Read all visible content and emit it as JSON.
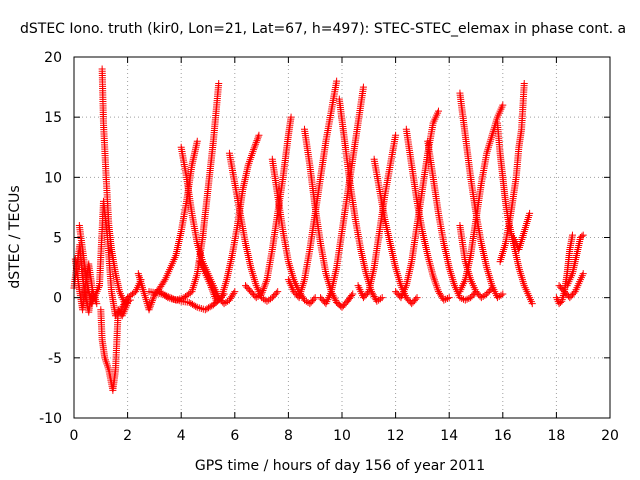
{
  "chart_data": {
    "type": "scatter",
    "title": "dSTEC Iono. truth (kir0, Lon=21, Lat=67, h=497): STEC-STEC_elemax in phase cont. a",
    "xlabel": "GPS time / hours of day 156 of year 2011",
    "ylabel": "dSTEC  / TECUs",
    "xlim": [
      0,
      20
    ],
    "ylim": [
      -10,
      20
    ],
    "xticks": [
      "0",
      "2",
      "4",
      "6",
      "8",
      "10",
      "12",
      "14",
      "16",
      "18",
      "20"
    ],
    "yticks": [
      "-10",
      "-5",
      "0",
      "5",
      "10",
      "15",
      "20"
    ],
    "grid": true,
    "marker": "+",
    "color": "#ff0000",
    "arcs": [
      [
        [
          0.0,
          0.8
        ],
        [
          0.1,
          2.6
        ],
        [
          0.22,
          4.4
        ],
        [
          0.3,
          2.0
        ],
        [
          0.4,
          0.5
        ],
        [
          0.55,
          -1.2
        ],
        [
          0.65,
          0.3
        ]
      ],
      [
        [
          0.05,
          3.2
        ],
        [
          0.18,
          1.0
        ],
        [
          0.32,
          -1.0
        ],
        [
          0.45,
          1.5
        ],
        [
          0.55,
          2.8
        ],
        [
          0.7,
          0.5
        ],
        [
          0.85,
          -0.5
        ]
      ],
      [
        [
          0.2,
          6.0
        ],
        [
          0.35,
          3.5
        ],
        [
          0.5,
          1.0
        ],
        [
          0.65,
          -0.5
        ],
        [
          0.8,
          0.2
        ],
        [
          0.95,
          1.0
        ]
      ],
      [
        [
          1.0,
          -1.0
        ],
        [
          1.05,
          -3.5
        ],
        [
          1.15,
          -5.0
        ],
        [
          1.3,
          -6.0
        ],
        [
          1.45,
          -7.7
        ],
        [
          1.55,
          -6.0
        ],
        [
          1.65,
          -1.0
        ],
        [
          1.8,
          -1.5
        ],
        [
          2.0,
          -0.5
        ]
      ],
      [
        [
          1.05,
          19.0
        ],
        [
          1.1,
          14.5
        ],
        [
          1.2,
          10.0
        ],
        [
          1.3,
          6.0
        ],
        [
          1.4,
          4.0
        ],
        [
          1.55,
          2.0
        ],
        [
          1.7,
          0.5
        ],
        [
          1.9,
          -0.5
        ],
        [
          2.1,
          -0.2
        ]
      ],
      [
        [
          0.95,
          1.0
        ],
        [
          1.1,
          8.0
        ],
        [
          1.25,
          5.0
        ],
        [
          1.4,
          0.5
        ],
        [
          1.55,
          -1.5
        ],
        [
          1.75,
          -1.0
        ],
        [
          2.0,
          0.0
        ],
        [
          2.3,
          0.5
        ],
        [
          2.5,
          1.5
        ]
      ],
      [
        [
          2.4,
          2.0
        ],
        [
          2.6,
          0.5
        ],
        [
          2.8,
          -1.0
        ],
        [
          3.0,
          0.2
        ],
        [
          3.2,
          0.8
        ],
        [
          3.4,
          1.5
        ],
        [
          3.6,
          2.5
        ],
        [
          3.8,
          3.5
        ],
        [
          4.0,
          5.5
        ],
        [
          4.2,
          8.0
        ],
        [
          4.4,
          11.0
        ],
        [
          4.6,
          13.0
        ]
      ],
      [
        [
          3.2,
          0.5
        ],
        [
          3.5,
          0.0
        ],
        [
          3.8,
          -0.2
        ],
        [
          4.1,
          0.0
        ],
        [
          4.4,
          0.5
        ],
        [
          4.6,
          2.0
        ],
        [
          4.8,
          5.0
        ],
        [
          5.0,
          9.0
        ],
        [
          5.2,
          13.0
        ],
        [
          5.4,
          17.8
        ]
      ],
      [
        [
          2.8,
          0.5
        ],
        [
          3.1,
          0.4
        ],
        [
          3.4,
          0.2
        ],
        [
          3.7,
          -0.1
        ],
        [
          4.0,
          -0.3
        ],
        [
          4.3,
          -0.4
        ],
        [
          4.6,
          -0.8
        ],
        [
          4.9,
          -1.0
        ],
        [
          5.2,
          -0.6
        ],
        [
          5.4,
          -0.2
        ],
        [
          5.6,
          0.3
        ]
      ],
      [
        [
          4.0,
          12.5
        ],
        [
          4.2,
          10.0
        ],
        [
          4.4,
          7.0
        ],
        [
          4.6,
          4.5
        ],
        [
          4.8,
          3.0
        ],
        [
          5.0,
          2.0
        ],
        [
          5.2,
          1.0
        ],
        [
          5.4,
          0.0
        ],
        [
          5.6,
          -0.5
        ],
        [
          5.8,
          -0.2
        ],
        [
          6.0,
          0.5
        ]
      ],
      [
        [
          4.7,
          3.0
        ],
        [
          4.9,
          2.0
        ],
        [
          5.1,
          1.0
        ],
        [
          5.3,
          -0.2
        ],
        [
          5.5,
          0.0
        ],
        [
          5.7,
          1.5
        ],
        [
          5.9,
          3.5
        ],
        [
          6.1,
          6.0
        ],
        [
          6.3,
          9.0
        ],
        [
          6.5,
          11.0
        ],
        [
          6.7,
          12.3
        ],
        [
          6.9,
          13.5
        ]
      ],
      [
        [
          5.8,
          12.0
        ],
        [
          6.0,
          9.5
        ],
        [
          6.2,
          7.0
        ],
        [
          6.4,
          4.5
        ],
        [
          6.6,
          2.5
        ],
        [
          6.8,
          1.0
        ],
        [
          7.0,
          0.0
        ],
        [
          7.2,
          -0.3
        ],
        [
          7.4,
          0.0
        ],
        [
          7.6,
          0.5
        ]
      ],
      [
        [
          6.4,
          1.0
        ],
        [
          6.6,
          0.5
        ],
        [
          6.8,
          0.0
        ],
        [
          7.0,
          0.3
        ],
        [
          7.2,
          1.5
        ],
        [
          7.4,
          4.0
        ],
        [
          7.6,
          7.0
        ],
        [
          7.8,
          10.0
        ],
        [
          8.0,
          13.5
        ],
        [
          8.1,
          15.0
        ]
      ],
      [
        [
          7.4,
          11.5
        ],
        [
          7.6,
          8.5
        ],
        [
          7.8,
          5.5
        ],
        [
          8.0,
          3.0
        ],
        [
          8.2,
          1.5
        ],
        [
          8.4,
          0.5
        ],
        [
          8.6,
          -0.2
        ],
        [
          8.8,
          -0.5
        ],
        [
          9.0,
          0.0
        ]
      ],
      [
        [
          8.0,
          1.5
        ],
        [
          8.2,
          0.5
        ],
        [
          8.4,
          0.0
        ],
        [
          8.6,
          1.5
        ],
        [
          8.8,
          4.0
        ],
        [
          9.0,
          7.0
        ],
        [
          9.2,
          10.0
        ],
        [
          9.4,
          13.0
        ],
        [
          9.6,
          15.5
        ],
        [
          9.8,
          18.0
        ]
      ],
      [
        [
          8.6,
          14.0
        ],
        [
          8.8,
          11.0
        ],
        [
          9.0,
          7.5
        ],
        [
          9.2,
          4.5
        ],
        [
          9.4,
          2.0
        ],
        [
          9.6,
          0.5
        ],
        [
          9.8,
          -0.4
        ],
        [
          10.0,
          -0.8
        ],
        [
          10.2,
          -0.3
        ],
        [
          10.4,
          0.3
        ]
      ],
      [
        [
          9.2,
          0.0
        ],
        [
          9.4,
          -0.5
        ],
        [
          9.6,
          0.5
        ],
        [
          9.8,
          2.5
        ],
        [
          10.0,
          5.5
        ],
        [
          10.2,
          8.5
        ],
        [
          10.4,
          11.5
        ],
        [
          10.6,
          14.5
        ],
        [
          10.8,
          17.5
        ]
      ],
      [
        [
          9.9,
          16.5
        ],
        [
          10.1,
          13.0
        ],
        [
          10.3,
          9.5
        ],
        [
          10.5,
          6.5
        ],
        [
          10.7,
          4.0
        ],
        [
          10.9,
          2.0
        ],
        [
          11.1,
          0.5
        ],
        [
          11.3,
          -0.3
        ],
        [
          11.5,
          0.0
        ]
      ],
      [
        [
          10.6,
          1.0
        ],
        [
          10.8,
          0.0
        ],
        [
          11.0,
          0.5
        ],
        [
          11.2,
          2.5
        ],
        [
          11.4,
          5.5
        ],
        [
          11.6,
          8.5
        ],
        [
          11.8,
          11.0
        ],
        [
          12.0,
          13.5
        ]
      ],
      [
        [
          11.2,
          11.5
        ],
        [
          11.4,
          9.0
        ],
        [
          11.6,
          6.5
        ],
        [
          11.8,
          4.5
        ],
        [
          12.0,
          2.5
        ],
        [
          12.2,
          1.0
        ],
        [
          12.4,
          0.0
        ],
        [
          12.6,
          -0.5
        ],
        [
          12.8,
          0.0
        ]
      ],
      [
        [
          12.0,
          0.5
        ],
        [
          12.2,
          0.0
        ],
        [
          12.4,
          1.0
        ],
        [
          12.6,
          3.0
        ],
        [
          12.8,
          6.0
        ],
        [
          13.0,
          9.0
        ],
        [
          13.2,
          12.0
        ],
        [
          13.4,
          14.5
        ],
        [
          13.6,
          15.5
        ]
      ],
      [
        [
          12.4,
          14.0
        ],
        [
          12.6,
          11.0
        ],
        [
          12.8,
          8.0
        ],
        [
          13.0,
          5.5
        ],
        [
          13.2,
          3.5
        ],
        [
          13.4,
          1.8
        ],
        [
          13.6,
          0.5
        ],
        [
          13.8,
          -0.2
        ],
        [
          14.0,
          0.0
        ]
      ],
      [
        [
          13.2,
          13.0
        ],
        [
          13.4,
          10.0
        ],
        [
          13.6,
          7.0
        ],
        [
          13.8,
          4.5
        ],
        [
          14.0,
          2.5
        ],
        [
          14.2,
          1.0
        ],
        [
          14.4,
          0.0
        ],
        [
          14.6,
          -0.2
        ],
        [
          14.8,
          0.0
        ],
        [
          15.0,
          0.5
        ]
      ],
      [
        [
          14.4,
          0.5
        ],
        [
          14.6,
          1.5
        ],
        [
          14.8,
          3.5
        ],
        [
          15.0,
          6.5
        ],
        [
          15.2,
          9.5
        ],
        [
          15.4,
          12.0
        ],
        [
          15.6,
          13.5
        ],
        [
          15.8,
          15.0
        ],
        [
          16.0,
          16.0
        ]
      ],
      [
        [
          14.4,
          17.0
        ],
        [
          14.6,
          13.5
        ],
        [
          14.8,
          10.0
        ],
        [
          15.0,
          7.0
        ],
        [
          15.2,
          4.5
        ],
        [
          15.4,
          2.5
        ],
        [
          15.6,
          1.0
        ],
        [
          15.8,
          0.0
        ],
        [
          16.0,
          0.3
        ]
      ],
      [
        [
          15.8,
          14.5
        ],
        [
          15.9,
          12.0
        ],
        [
          16.0,
          10.0
        ],
        [
          16.1,
          8.0
        ],
        [
          16.2,
          6.5
        ],
        [
          16.4,
          4.5
        ],
        [
          16.6,
          2.5
        ],
        [
          16.8,
          1.0
        ],
        [
          17.0,
          0.0
        ],
        [
          17.1,
          -0.5
        ]
      ],
      [
        [
          15.9,
          3.0
        ],
        [
          16.1,
          4.5
        ],
        [
          16.3,
          7.0
        ],
        [
          16.5,
          10.0
        ],
        [
          16.6,
          12.5
        ],
        [
          16.7,
          14.0
        ],
        [
          16.8,
          17.8
        ]
      ],
      [
        [
          14.4,
          6.0
        ],
        [
          14.6,
          3.0
        ],
        [
          14.8,
          1.5
        ],
        [
          15.0,
          0.5
        ],
        [
          15.2,
          0.0
        ],
        [
          15.4,
          0.3
        ],
        [
          15.6,
          0.8
        ]
      ],
      [
        [
          16.4,
          5.0
        ],
        [
          16.6,
          4.0
        ],
        [
          16.8,
          5.5
        ],
        [
          17.0,
          7.0
        ]
      ],
      [
        [
          18.0,
          0.0
        ],
        [
          18.1,
          -0.5
        ],
        [
          18.2,
          -0.3
        ],
        [
          18.3,
          0.5
        ],
        [
          18.4,
          2.0
        ],
        [
          18.5,
          4.0
        ],
        [
          18.6,
          5.2
        ]
      ],
      [
        [
          18.4,
          1.0
        ],
        [
          18.6,
          2.0
        ],
        [
          18.8,
          4.0
        ],
        [
          18.9,
          5.0
        ],
        [
          19.0,
          5.2
        ]
      ],
      [
        [
          18.1,
          1.0
        ],
        [
          18.3,
          0.5
        ],
        [
          18.5,
          0.0
        ],
        [
          18.7,
          0.5
        ],
        [
          18.9,
          1.5
        ],
        [
          19.0,
          2.0
        ]
      ]
    ]
  }
}
